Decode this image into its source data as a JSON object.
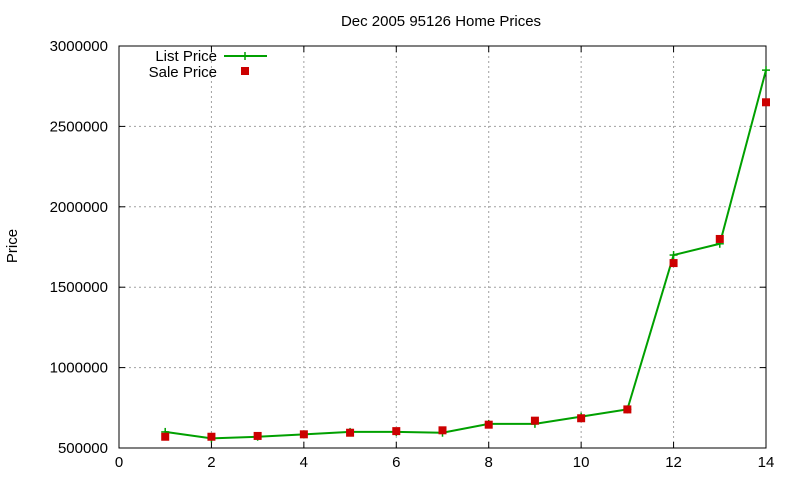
{
  "chart_data": {
    "type": "line",
    "title": "Dec 2005 95126 Home Prices",
    "xlabel": "",
    "ylabel": "Price",
    "xlim": [
      0,
      14
    ],
    "ylim": [
      500000,
      3000000
    ],
    "x_ticks": [
      "0",
      "2",
      "4",
      "6",
      "8",
      "10",
      "12",
      "14"
    ],
    "y_ticks": [
      "500000",
      "1000000",
      "1500000",
      "2000000",
      "2500000",
      "3000000"
    ],
    "grid": true,
    "legend_position": "top-left",
    "series": [
      {
        "name": "List Price",
        "style": "line-with-plus",
        "color": "#00a000",
        "x": [
          1,
          2,
          3,
          4,
          5,
          6,
          7,
          8,
          9,
          10,
          11,
          12,
          13,
          14
        ],
        "y": [
          600000,
          560000,
          570000,
          585000,
          600000,
          600000,
          595000,
          650000,
          650000,
          695000,
          740000,
          1700000,
          1770000,
          2850000
        ]
      },
      {
        "name": "Sale Price",
        "style": "square-points",
        "color": "#cc0000",
        "x": [
          1,
          2,
          3,
          4,
          5,
          6,
          7,
          8,
          9,
          10,
          11,
          12,
          13,
          14
        ],
        "y": [
          570000,
          570000,
          575000,
          585000,
          595000,
          605000,
          610000,
          645000,
          670000,
          685000,
          740000,
          1650000,
          1800000,
          2650000
        ]
      }
    ]
  }
}
